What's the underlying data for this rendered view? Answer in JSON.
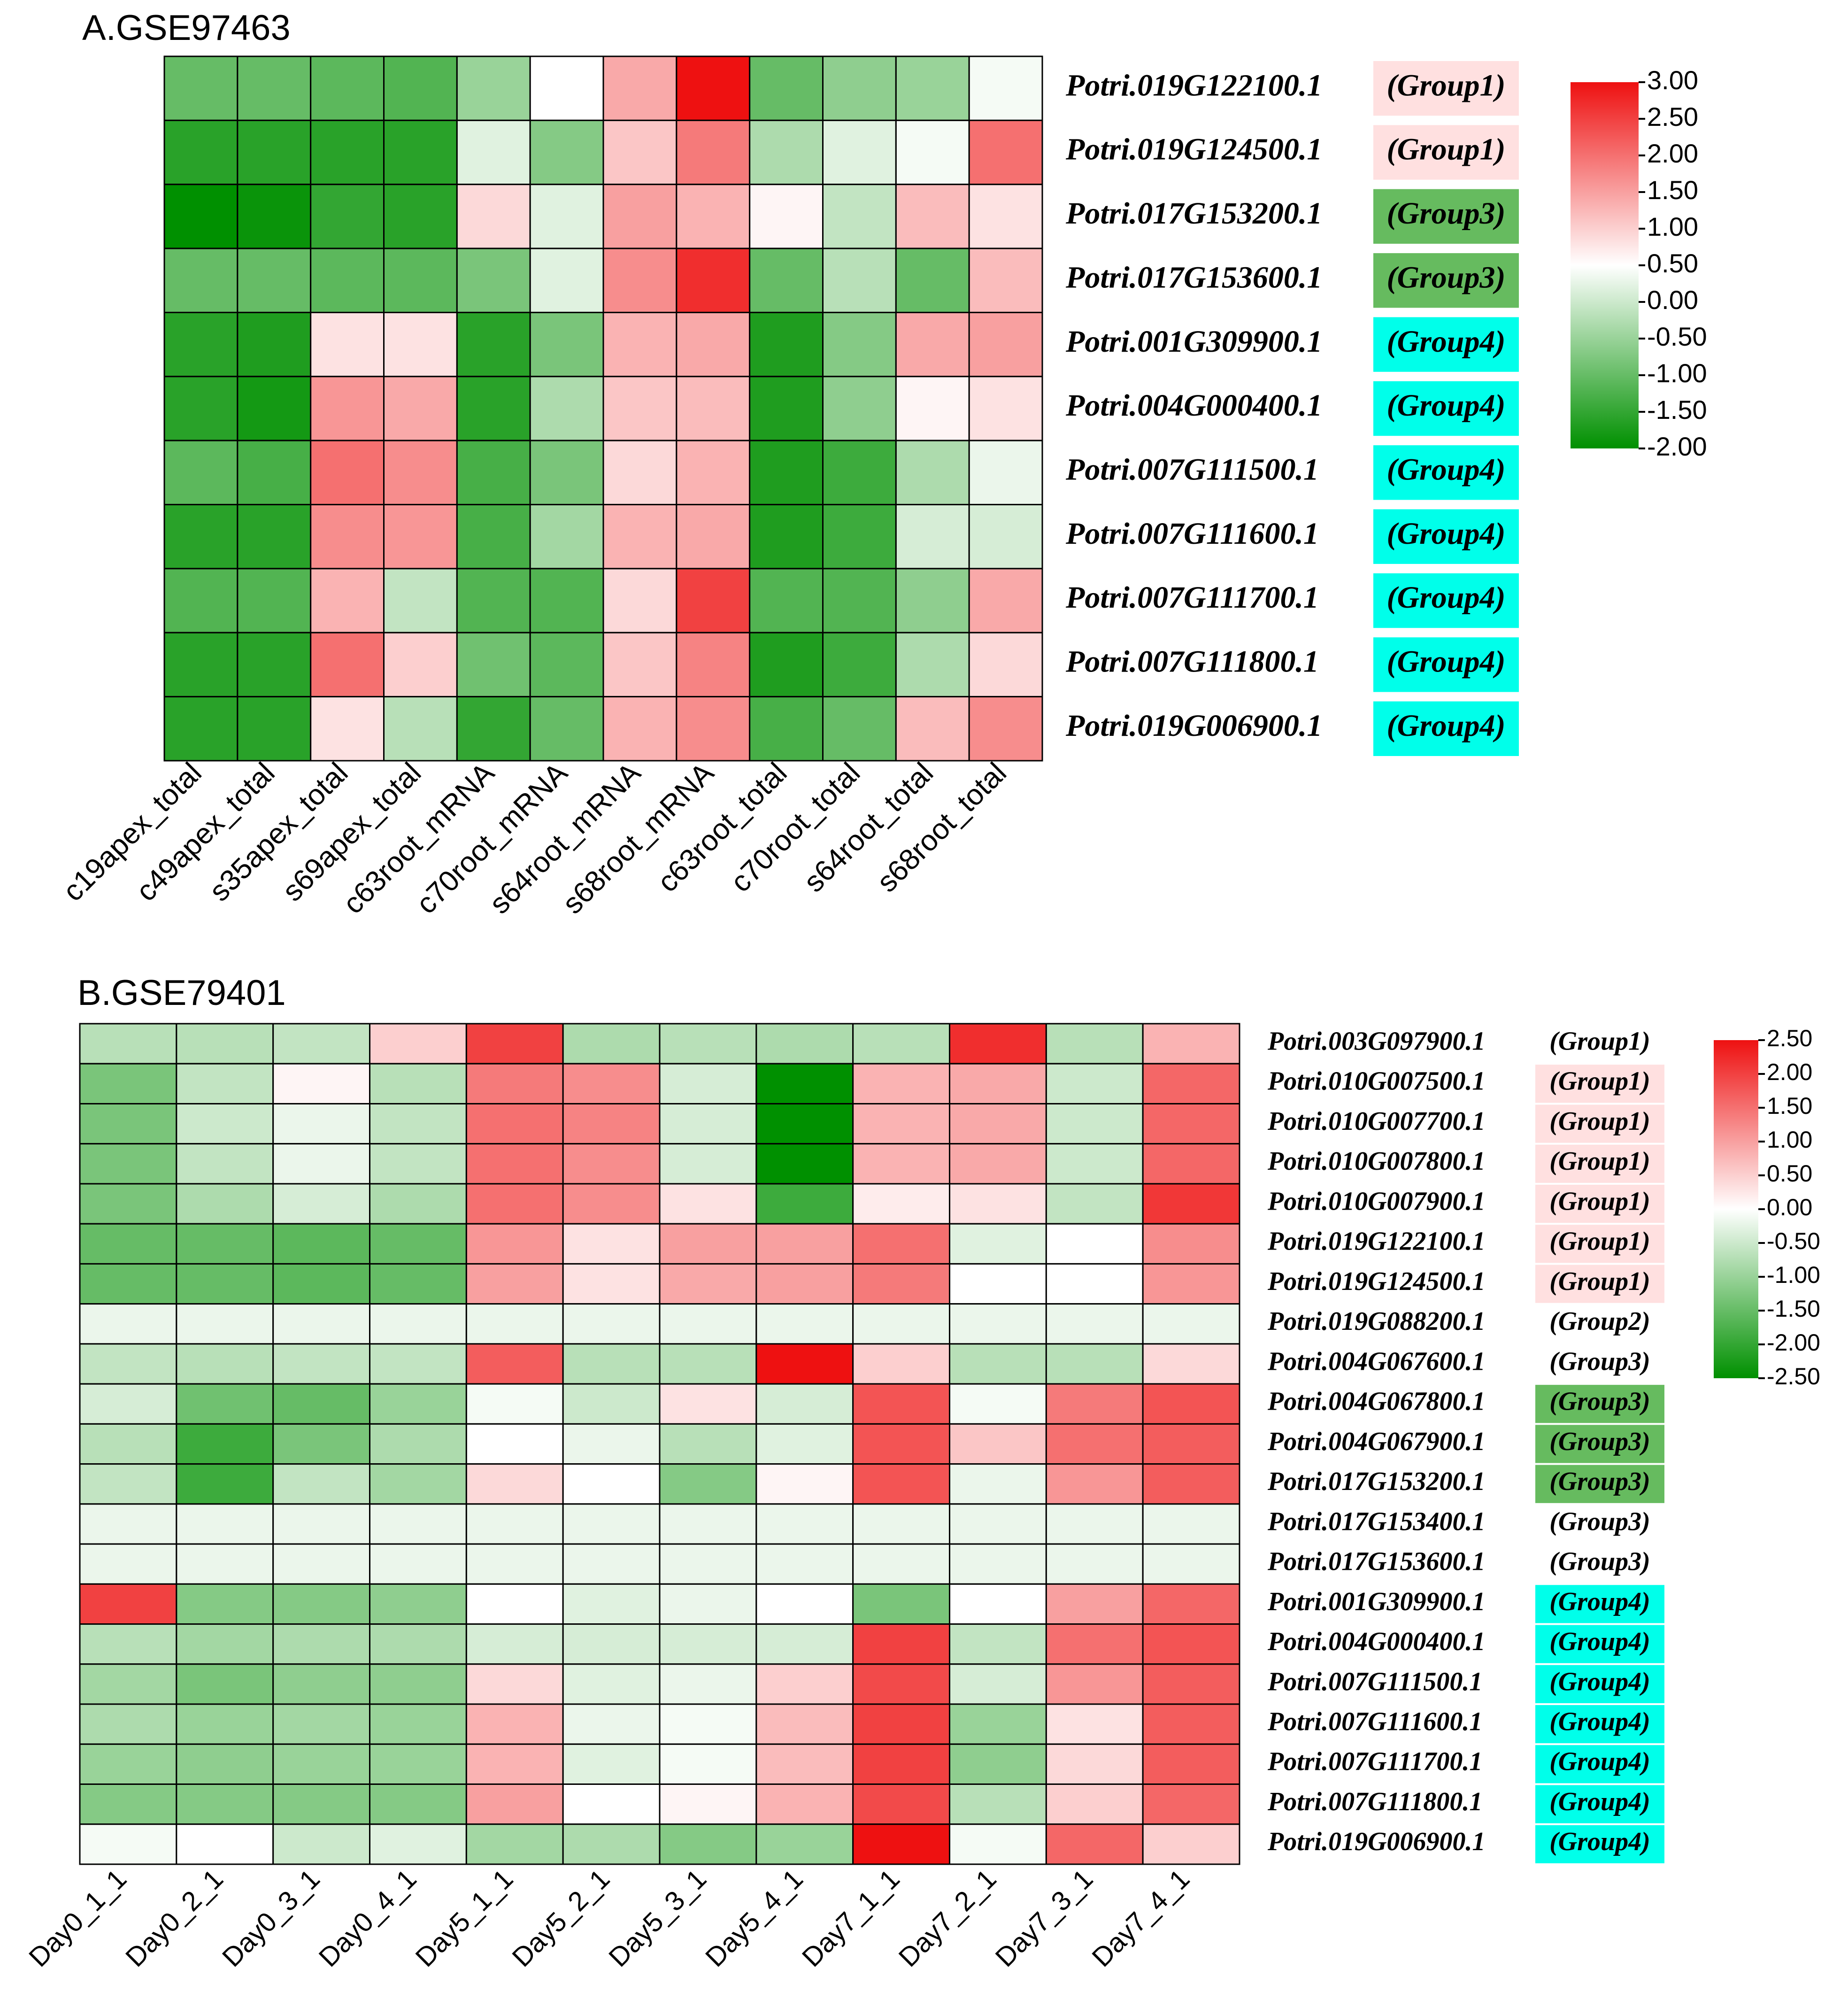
{
  "chart_data": [
    {
      "type": "heatmap",
      "title": "A.GSE97463",
      "columns": [
        "c19apex_total",
        "c49apex_total",
        "s35apex_total",
        "s69apex_total",
        "c63root_mRNA",
        "c70root_mRNA",
        "s64root_mRNA",
        "s68root_mRNA",
        "c63root_total",
        "c70root_total",
        "s64root_total",
        "s68root_total"
      ],
      "rows": [
        {
          "gene": "Potri.019G122100.1",
          "group": "(Group1)"
        },
        {
          "gene": "Potri.019G124500.1",
          "group": "(Group1)"
        },
        {
          "gene": "Potri.017G153200.1",
          "group": "(Group3)"
        },
        {
          "gene": "Potri.017G153600.1",
          "group": "(Group3)"
        },
        {
          "gene": "Potri.001G309900.1",
          "group": "(Group4)"
        },
        {
          "gene": "Potri.004G000400.1",
          "group": "(Group4)"
        },
        {
          "gene": "Potri.007G111500.1",
          "group": "(Group4)"
        },
        {
          "gene": "Potri.007G111600.1",
          "group": "(Group4)"
        },
        {
          "gene": "Potri.007G111700.1",
          "group": "(Group4)"
        },
        {
          "gene": "Potri.007G111800.1",
          "group": "(Group4)"
        },
        {
          "gene": "Potri.019G006900.1",
          "group": "(Group4)"
        }
      ],
      "values": [
        [
          -1.0,
          -1.0,
          -1.1,
          -1.2,
          -0.5,
          0.5,
          1.4,
          3.0,
          -1.0,
          -0.6,
          -0.5,
          0.4
        ],
        [
          -1.6,
          -1.6,
          -1.6,
          -1.6,
          0.2,
          -0.7,
          1.1,
          1.9,
          -0.3,
          0.2,
          0.4,
          2.0
        ],
        [
          -2.0,
          -1.9,
          -1.5,
          -1.6,
          0.9,
          0.2,
          1.5,
          1.3,
          0.6,
          -0.1,
          1.2,
          0.8
        ],
        [
          -1.0,
          -1.0,
          -1.1,
          -1.1,
          -0.8,
          0.2,
          1.7,
          2.7,
          -1.0,
          -0.2,
          -1.0,
          1.2
        ],
        [
          -1.6,
          -1.7,
          0.8,
          0.8,
          -1.6,
          -0.8,
          1.3,
          1.4,
          -1.7,
          -0.7,
          1.4,
          1.5
        ],
        [
          -1.6,
          -1.8,
          1.6,
          1.4,
          -1.6,
          -0.3,
          1.1,
          1.2,
          -1.7,
          -0.6,
          0.6,
          0.8
        ],
        [
          -1.1,
          -1.3,
          2.0,
          1.7,
          -1.3,
          -0.8,
          0.9,
          1.3,
          -1.7,
          -1.4,
          -0.3,
          0.3
        ],
        [
          -1.6,
          -1.6,
          1.7,
          1.6,
          -1.3,
          -0.4,
          1.3,
          1.4,
          -1.7,
          -1.4,
          0.1,
          0.1
        ],
        [
          -1.2,
          -1.2,
          1.3,
          -0.1,
          -1.2,
          -1.2,
          0.9,
          2.5,
          -1.2,
          -1.2,
          -0.6,
          1.4
        ],
        [
          -1.6,
          -1.6,
          2.0,
          1.0,
          -0.9,
          -1.1,
          1.1,
          1.8,
          -1.7,
          -1.4,
          -0.3,
          0.9
        ],
        [
          -1.6,
          -1.6,
          0.8,
          -0.2,
          -1.5,
          -1.0,
          1.3,
          1.7,
          -1.3,
          -1.0,
          1.2,
          1.7
        ]
      ],
      "scale": {
        "min": -2.0,
        "max": 3.0,
        "ticks": [
          "3.00",
          "2.50",
          "2.00",
          "1.50",
          "1.00",
          "0.50",
          "0.00",
          "-0.50",
          "-1.00",
          "-1.50",
          "-2.00"
        ],
        "low_color": "#009000",
        "mid_color": "#ffffff",
        "high_color": "#ee1111"
      },
      "group_colors": {
        "(Group1)": "#ffe0e0",
        "(Group3)": "#66bb5f",
        "(Group4)": "#00ffea"
      }
    },
    {
      "type": "heatmap",
      "title": "B.GSE79401",
      "columns": [
        "Day0_1_1",
        "Day0_2_1",
        "Day0_3_1",
        "Day0_4_1",
        "Day5_1_1",
        "Day5_2_1",
        "Day5_3_1",
        "Day5_4_1",
        "Day7_1_1",
        "Day7_2_1",
        "Day7_3_1",
        "Day7_4_1"
      ],
      "rows": [
        {
          "gene": "Potri.003G097900.1",
          "group": "(Group1)"
        },
        {
          "gene": "Potri.010G007500.1",
          "group": "(Group1)"
        },
        {
          "gene": "Potri.010G007700.1",
          "group": "(Group1)"
        },
        {
          "gene": "Potri.010G007800.1",
          "group": "(Group1)"
        },
        {
          "gene": "Potri.010G007900.1",
          "group": "(Group1)"
        },
        {
          "gene": "Potri.019G122100.1",
          "group": "(Group1)"
        },
        {
          "gene": "Potri.019G124500.1",
          "group": "(Group1)"
        },
        {
          "gene": "Potri.019G088200.1",
          "group": "(Group2)"
        },
        {
          "gene": "Potri.004G067600.1",
          "group": "(Group3)"
        },
        {
          "gene": "Potri.004G067800.1",
          "group": "(Group3)"
        },
        {
          "gene": "Potri.004G067900.1",
          "group": "(Group3)"
        },
        {
          "gene": "Potri.017G153200.1",
          "group": "(Group3)"
        },
        {
          "gene": "Potri.017G153400.1",
          "group": "(Group3)"
        },
        {
          "gene": "Potri.017G153600.1",
          "group": "(Group3)"
        },
        {
          "gene": "Potri.001G309900.1",
          "group": "(Group4)"
        },
        {
          "gene": "Potri.004G000400.1",
          "group": "(Group4)"
        },
        {
          "gene": "Potri.007G111500.1",
          "group": "(Group4)"
        },
        {
          "gene": "Potri.007G111600.1",
          "group": "(Group4)"
        },
        {
          "gene": "Potri.007G111700.1",
          "group": "(Group4)"
        },
        {
          "gene": "Potri.007G111800.1",
          "group": "(Group4)"
        },
        {
          "gene": "Potri.019G006900.1",
          "group": "(Group4)"
        }
      ],
      "values": [
        [
          -0.7,
          -0.7,
          -0.6,
          0.5,
          2.0,
          -0.8,
          -0.7,
          -0.8,
          -0.7,
          2.2,
          -0.7,
          0.8
        ],
        [
          -1.3,
          -0.6,
          0.1,
          -0.7,
          1.4,
          1.2,
          -0.4,
          -2.5,
          0.8,
          0.9,
          -0.5,
          1.6
        ],
        [
          -1.3,
          -0.5,
          -0.2,
          -0.6,
          1.5,
          1.3,
          -0.4,
          -2.5,
          0.8,
          0.9,
          -0.5,
          1.6
        ],
        [
          -1.3,
          -0.6,
          -0.2,
          -0.6,
          1.5,
          1.2,
          -0.4,
          -2.5,
          0.8,
          0.9,
          -0.5,
          1.6
        ],
        [
          -1.3,
          -0.8,
          -0.4,
          -0.8,
          1.5,
          1.2,
          0.3,
          -1.9,
          0.2,
          0.3,
          -0.6,
          2.1
        ],
        [
          -1.5,
          -1.5,
          -1.6,
          -1.5,
          1.1,
          0.3,
          1.0,
          1.0,
          1.5,
          -0.3,
          0.0,
          1.2
        ],
        [
          -1.5,
          -1.5,
          -1.6,
          -1.5,
          1.0,
          0.3,
          0.9,
          1.0,
          1.4,
          0.0,
          0.0,
          1.1
        ],
        [
          -0.2,
          -0.2,
          -0.2,
          -0.2,
          -0.2,
          -0.2,
          -0.2,
          -0.2,
          -0.2,
          -0.2,
          -0.2,
          -0.2
        ],
        [
          -0.6,
          -0.7,
          -0.6,
          -0.6,
          1.7,
          -0.7,
          -0.7,
          2.5,
          0.5,
          -0.7,
          -0.7,
          0.4
        ],
        [
          -0.4,
          -1.4,
          -1.5,
          -1.0,
          -0.1,
          -0.5,
          0.3,
          -0.4,
          1.8,
          -0.1,
          1.4,
          1.8
        ],
        [
          -0.7,
          -1.9,
          -1.3,
          -0.8,
          0.0,
          -0.2,
          -0.7,
          -0.3,
          1.8,
          0.6,
          1.5,
          1.7
        ],
        [
          -0.6,
          -1.9,
          -0.6,
          -0.9,
          0.4,
          0.0,
          -1.2,
          0.1,
          1.8,
          -0.2,
          1.1,
          1.7
        ],
        [
          -0.2,
          -0.2,
          -0.2,
          -0.2,
          -0.2,
          -0.2,
          -0.2,
          -0.2,
          -0.2,
          -0.2,
          -0.2,
          -0.2
        ],
        [
          -0.2,
          -0.2,
          -0.2,
          -0.2,
          -0.2,
          -0.2,
          -0.2,
          -0.2,
          -0.2,
          -0.2,
          -0.2,
          -0.2
        ],
        [
          2.0,
          -1.2,
          -1.2,
          -1.1,
          0.0,
          -0.3,
          -0.2,
          0.0,
          -1.3,
          0.0,
          1.0,
          1.6
        ],
        [
          -0.7,
          -0.9,
          -0.8,
          -0.8,
          -0.4,
          -0.4,
          -0.4,
          -0.4,
          2.0,
          -0.6,
          1.5,
          1.8
        ],
        [
          -0.9,
          -1.3,
          -1.1,
          -1.1,
          0.4,
          -0.3,
          -0.2,
          0.5,
          1.9,
          -0.4,
          1.1,
          1.7
        ],
        [
          -0.8,
          -1.0,
          -0.9,
          -1.0,
          0.8,
          -0.2,
          -0.1,
          0.7,
          2.0,
          -1.0,
          0.3,
          1.7
        ],
        [
          -1.0,
          -1.1,
          -1.0,
          -1.0,
          0.8,
          -0.3,
          -0.1,
          0.7,
          2.0,
          -1.1,
          0.4,
          1.7
        ],
        [
          -1.2,
          -1.2,
          -1.2,
          -1.2,
          1.0,
          0.0,
          0.1,
          0.8,
          1.9,
          -0.7,
          0.5,
          1.6
        ],
        [
          -0.1,
          0.0,
          -0.5,
          -0.3,
          -0.9,
          -0.8,
          -1.2,
          -1.0,
          2.5,
          -0.1,
          1.6,
          0.5
        ]
      ],
      "scale": {
        "min": -2.5,
        "max": 2.5,
        "ticks": [
          "2.50",
          "2.00",
          "1.50",
          "1.00",
          "0.50",
          "0.00",
          "-0.50",
          "-1.00",
          "-1.50",
          "-2.00",
          "-2.50"
        ],
        "low_color": "#009000",
        "mid_color": "#ffffff",
        "high_color": "#ee1111"
      },
      "group_colors": {
        "(Group1)": "#ffe0e0",
        "(Group2)": "none",
        "(Group3)": "#66bb5f",
        "(Group4)": "#00ffea"
      },
      "group_highlight_rows": [
        1,
        2,
        3,
        4,
        5,
        6,
        9,
        10,
        11,
        14,
        15,
        16,
        17,
        18,
        19,
        20
      ]
    }
  ]
}
